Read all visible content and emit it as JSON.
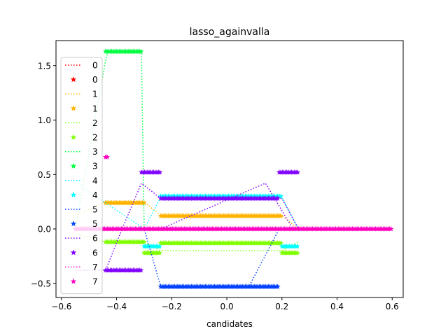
{
  "chart_data": {
    "type": "line",
    "title": "lasso_againvalla",
    "xlabel": "candidates",
    "ylabel": "",
    "xlim": [
      -0.62,
      0.64
    ],
    "ylim": [
      -0.63,
      1.73
    ],
    "xticks": [
      -0.6,
      -0.4,
      -0.2,
      0.0,
      0.2,
      0.4,
      0.6
    ],
    "xtick_labels": [
      "−0.6",
      "−0.4",
      "−0.2",
      "0.0",
      "0.2",
      "0.4",
      "0.6"
    ],
    "yticks": [
      -0.5,
      0.0,
      0.5,
      1.0,
      1.5
    ],
    "ytick_labels": [
      "−0.5",
      "0.0",
      "0.5",
      "1.0",
      "1.5"
    ],
    "grid": false,
    "legend_position": "upper-left",
    "series": [
      {
        "name": "0",
        "color": "#ff0000",
        "line": {
          "x": [],
          "y": []
        },
        "markers": []
      },
      {
        "name": "1",
        "color": "#ffb300",
        "line": {
          "x": [
            -0.55,
            -0.44,
            -0.3,
            -0.24,
            0.2,
            0.26
          ],
          "y": [
            0.12,
            0.25,
            0.25,
            0.12,
            0.12,
            0.0
          ]
        },
        "markers": [
          {
            "x0": -0.44,
            "x1": -0.3,
            "y": 0.24
          },
          {
            "x0": -0.24,
            "x1": 0.2,
            "y": 0.12
          }
        ]
      },
      {
        "name": "2",
        "color": "#80ff00",
        "line": {
          "x": [
            -0.55,
            -0.44,
            -0.3,
            -0.24,
            0.2,
            0.26
          ],
          "y": [
            -0.05,
            -0.12,
            -0.12,
            -0.2,
            -0.2,
            -0.12
          ]
        },
        "markers": [
          {
            "x0": -0.44,
            "x1": -0.3,
            "y": -0.12
          },
          {
            "x0": -0.3,
            "x1": -0.24,
            "y": -0.22
          },
          {
            "x0": -0.24,
            "x1": 0.2,
            "y": -0.13
          },
          {
            "x0": 0.2,
            "x1": 0.26,
            "y": -0.22
          }
        ]
      },
      {
        "name": "3",
        "color": "#00ff40",
        "line": {
          "x": [
            -0.55,
            -0.44,
            -0.43,
            -0.31,
            -0.3
          ],
          "y": [
            0.0,
            1.55,
            1.63,
            1.63,
            0.0
          ]
        },
        "markers": [
          {
            "x0": -0.44,
            "x1": -0.31,
            "y": 1.63
          }
        ]
      },
      {
        "name": "4",
        "color": "#00ffff",
        "line": {
          "x": [
            -0.55,
            -0.3,
            -0.24,
            0.2,
            0.26
          ],
          "y": [
            0.43,
            0.0,
            0.29,
            0.29,
            0.0
          ]
        },
        "markers": [
          {
            "x0": -0.3,
            "x1": -0.24,
            "y": -0.16
          },
          {
            "x0": -0.24,
            "x1": 0.2,
            "y": 0.3
          },
          {
            "x0": 0.2,
            "x1": 0.26,
            "y": -0.16
          }
        ]
      },
      {
        "name": "5",
        "color": "#0040ff",
        "line": {
          "x": [
            -0.55,
            -0.3,
            -0.24,
            0.08,
            0.19
          ],
          "y": [
            0.0,
            0.0,
            -0.53,
            -0.53,
            0.0
          ]
        },
        "markers": [
          {
            "x0": -0.24,
            "x1": 0.19,
            "y": -0.53
          }
        ]
      },
      {
        "name": "6",
        "color": "#8000ff",
        "line": {
          "x": [
            -0.55,
            -0.44,
            -0.38,
            -0.31,
            -0.24,
            0.2,
            0.26
          ],
          "y": [
            -0.38,
            -0.38,
            0.0,
            0.42,
            0.28,
            0.28,
            0.0
          ]
        },
        "extra_line": {
          "x": [
            -0.24,
            0.14,
            0.24
          ],
          "y": [
            0.0,
            0.42,
            0.0
          ]
        },
        "markers": [
          {
            "x0": -0.44,
            "x1": -0.31,
            "y": -0.38
          },
          {
            "x0": -0.31,
            "x1": -0.24,
            "y": 0.52
          },
          {
            "x0": -0.24,
            "x1": 0.19,
            "y": 0.28
          },
          {
            "x0": 0.19,
            "x1": 0.26,
            "y": 0.52
          }
        ]
      },
      {
        "name": "7",
        "color": "#ff00c0",
        "line": {
          "x": [
            -0.55,
            0.6
          ],
          "y": [
            0.0,
            0.0
          ]
        },
        "markers": [
          {
            "x0": -0.55,
            "x1": 0.6,
            "y": 0.0
          },
          {
            "x0": -0.44,
            "x1": -0.43,
            "y": 0.66
          }
        ]
      }
    ]
  }
}
